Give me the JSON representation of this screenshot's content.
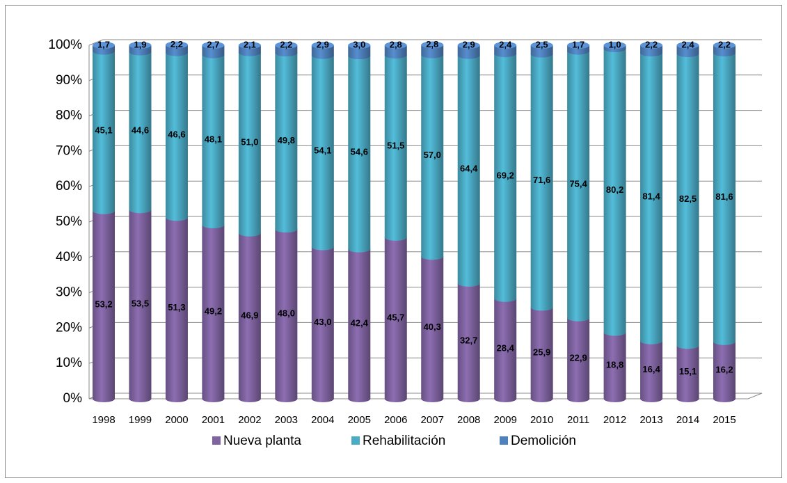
{
  "chart_data": {
    "type": "bar",
    "stacked": true,
    "categories": [
      "1998",
      "1999",
      "2000",
      "2001",
      "2002",
      "2003",
      "2004",
      "2005",
      "2006",
      "2007",
      "2008",
      "2009",
      "2010",
      "2011",
      "2012",
      "2013",
      "2014",
      "2015"
    ],
    "series": [
      {
        "name": "Nueva planta",
        "color": "#8064a2",
        "values": [
          53.2,
          53.5,
          51.3,
          49.2,
          46.9,
          48.0,
          43.0,
          42.4,
          45.7,
          40.3,
          32.7,
          28.4,
          25.9,
          22.9,
          18.8,
          16.4,
          15.1,
          16.2
        ],
        "value_labels": [
          "53,2",
          "53,5",
          "51,3",
          "49,2",
          "46,9",
          "48,0",
          "43,0",
          "42,4",
          "45,7",
          "40,3",
          "32,7",
          "28,4",
          "25,9",
          "22,9",
          "18,8",
          "16,4",
          "15,1",
          "16,2"
        ]
      },
      {
        "name": "Rehabilitación",
        "color": "#4bacc6",
        "values": [
          45.1,
          44.6,
          46.6,
          48.1,
          51.0,
          49.8,
          54.1,
          54.6,
          51.5,
          57.0,
          64.4,
          69.2,
          71.6,
          75.4,
          80.2,
          81.4,
          82.5,
          81.6
        ],
        "value_labels": [
          "45,1",
          "44,6",
          "46,6",
          "48,1",
          "51,0",
          "49,8",
          "54,1",
          "54,6",
          "51,5",
          "57,0",
          "64,4",
          "69,2",
          "71,6",
          "75,4",
          "80,2",
          "81,4",
          "82,5",
          "81,6"
        ]
      },
      {
        "name": "Demolición",
        "color": "#4f81bd",
        "values": [
          1.7,
          1.9,
          2.2,
          2.7,
          2.1,
          2.2,
          2.9,
          3.0,
          2.8,
          2.8,
          2.9,
          2.4,
          2.5,
          1.7,
          1.0,
          2.2,
          2.4,
          2.2
        ],
        "value_labels": [
          "1,7",
          "1,9",
          "2,2",
          "2,7",
          "2,1",
          "2,2",
          "2,9",
          "3,0",
          "2,8",
          "2,8",
          "2,9",
          "2,4",
          "2,5",
          "1,7",
          "1,0",
          "2,2",
          "2,4",
          "2,2"
        ]
      }
    ],
    "ylim": [
      0,
      100
    ],
    "yticks": [
      {
        "value": 0,
        "label": "0%"
      },
      {
        "value": 10,
        "label": "10%"
      },
      {
        "value": 20,
        "label": "20%"
      },
      {
        "value": 30,
        "label": "30%"
      },
      {
        "value": 40,
        "label": "40%"
      },
      {
        "value": 50,
        "label": "50%"
      },
      {
        "value": 60,
        "label": "60%"
      },
      {
        "value": 70,
        "label": "70%"
      },
      {
        "value": 80,
        "label": "80%"
      },
      {
        "value": 90,
        "label": "90%"
      },
      {
        "value": 100,
        "label": "100%"
      }
    ],
    "grid": true,
    "legend": "bottom"
  }
}
